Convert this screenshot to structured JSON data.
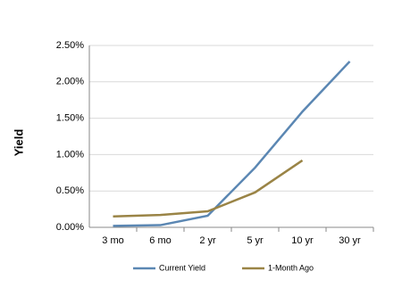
{
  "chart_data": {
    "type": "line",
    "y_label": "Yield",
    "categories": [
      "3 mo",
      "6 mo",
      "2 yr",
      "5 yr",
      "10 yr",
      "30 yr"
    ],
    "series": [
      {
        "name": "Current Yield",
        "color": "#5b87b3",
        "values": [
          0.02,
          0.03,
          0.16,
          0.82,
          1.59,
          2.28
        ]
      },
      {
        "name": "1-Month Ago",
        "color": "#9a8446",
        "values": [
          0.15,
          0.17,
          0.22,
          0.48,
          0.92,
          null
        ]
      }
    ],
    "ylim": [
      0,
      2.5
    ],
    "yticks": [
      {
        "value": 0,
        "label": "0.00%"
      },
      {
        "value": 0.5,
        "label": "0.50%"
      },
      {
        "value": 1,
        "label": "1.00%"
      },
      {
        "value": 1.5,
        "label": "1.50%"
      },
      {
        "value": 2,
        "label": "2.00%"
      },
      {
        "value": 2.5,
        "label": "2.50%"
      }
    ],
    "grid": true,
    "legend": "bottom"
  }
}
